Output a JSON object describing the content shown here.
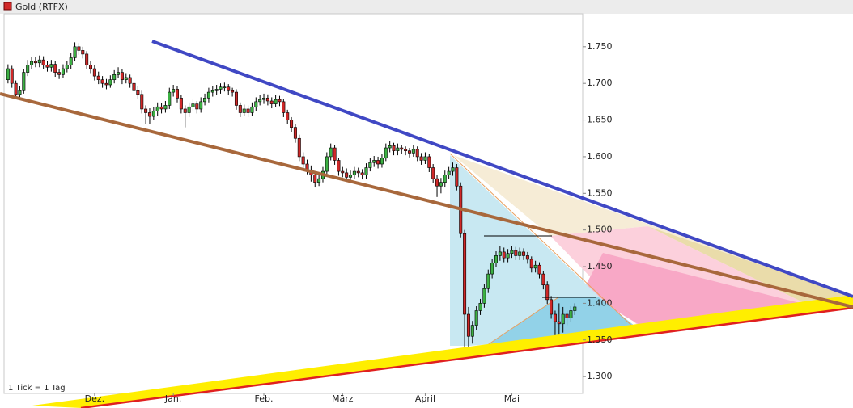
{
  "chart_data": {
    "type": "candlestick",
    "note_text": "1 Tick = 1 Tag",
    "up_color": "#3cb043",
    "down_color": "#d02828",
    "series": [
      {
        "name": "Gold (RTFX)",
        "color": "#d02828",
        "open": [
          1705,
          1720,
          1700,
          1685,
          1690,
          1715,
          1725,
          1730,
          1728,
          1732,
          1725,
          1722,
          1726,
          1715,
          1712,
          1720,
          1725,
          1735,
          1750,
          1745,
          1740,
          1725,
          1720,
          1710,
          1705,
          1700,
          1698,
          1705,
          1712,
          1715,
          1705,
          1708,
          1700,
          1690,
          1685,
          1665,
          1660,
          1655,
          1662,
          1668,
          1665,
          1670,
          1688,
          1692,
          1680,
          1665,
          1660,
          1668,
          1672,
          1665,
          1675,
          1680,
          1688,
          1690,
          1692,
          1695,
          1695,
          1690,
          1688,
          1670,
          1660,
          1665,
          1660,
          1668,
          1675,
          1678,
          1680,
          1676,
          1672,
          1678,
          1675,
          1660,
          1650,
          1640,
          1625,
          1600,
          1590,
          1582,
          1575,
          1565,
          1570,
          1580,
          1600,
          1612,
          1595,
          1580,
          1578,
          1572,
          1575,
          1580,
          1578,
          1575,
          1585,
          1592,
          1595,
          1590,
          1598,
          1612,
          1615,
          1608,
          1612,
          1610,
          1608,
          1605,
          1610,
          1600,
          1595,
          1600,
          1585,
          1570,
          1560,
          1565,
          1575,
          1580,
          1585,
          1560,
          1495,
          1385,
          1355,
          1370,
          1390,
          1400,
          1420,
          1440,
          1455,
          1465,
          1470,
          1462,
          1468,
          1472,
          1465,
          1470,
          1465,
          1460,
          1448,
          1452,
          1440,
          1425,
          1405,
          1385,
          1375,
          1372,
          1385,
          1380,
          1390
        ],
        "high": [
          1726,
          1724,
          1704,
          1696,
          1720,
          1732,
          1736,
          1736,
          1738,
          1737,
          1730,
          1732,
          1730,
          1720,
          1726,
          1731,
          1741,
          1756,
          1755,
          1750,
          1744,
          1730,
          1725,
          1716,
          1710,
          1706,
          1711,
          1718,
          1722,
          1719,
          1714,
          1712,
          1704,
          1696,
          1690,
          1670,
          1666,
          1668,
          1674,
          1673,
          1676,
          1694,
          1698,
          1696,
          1684,
          1670,
          1674,
          1678,
          1676,
          1681,
          1686,
          1694,
          1696,
          1698,
          1700,
          1701,
          1699,
          1694,
          1692,
          1674,
          1671,
          1670,
          1674,
          1681,
          1684,
          1686,
          1685,
          1681,
          1684,
          1683,
          1679,
          1664,
          1654,
          1644,
          1630,
          1606,
          1596,
          1588,
          1580,
          1576,
          1586,
          1606,
          1618,
          1616,
          1598,
          1586,
          1584,
          1581,
          1586,
          1585,
          1583,
          1591,
          1598,
          1601,
          1600,
          1604,
          1618,
          1621,
          1619,
          1618,
          1616,
          1614,
          1612,
          1616,
          1614,
          1605,
          1606,
          1604,
          1590,
          1575,
          1571,
          1581,
          1586,
          1592,
          1590,
          1565,
          1500,
          1395,
          1376,
          1396,
          1406,
          1426,
          1446,
          1461,
          1471,
          1478,
          1476,
          1474,
          1478,
          1477,
          1476,
          1475,
          1470,
          1464,
          1458,
          1456,
          1444,
          1430,
          1410,
          1390,
          1400,
          1395,
          1390,
          1396,
          1400
        ],
        "low": [
          1700,
          1694,
          1679,
          1680,
          1686,
          1710,
          1720,
          1722,
          1722,
          1719,
          1716,
          1716,
          1709,
          1706,
          1708,
          1715,
          1720,
          1730,
          1739,
          1734,
          1719,
          1714,
          1704,
          1699,
          1694,
          1692,
          1694,
          1700,
          1707,
          1699,
          1700,
          1694,
          1684,
          1679,
          1659,
          1645,
          1645,
          1650,
          1656,
          1659,
          1660,
          1665,
          1682,
          1674,
          1659,
          1640,
          1654,
          1662,
          1659,
          1660,
          1670,
          1674,
          1682,
          1684,
          1686,
          1689,
          1684,
          1682,
          1664,
          1654,
          1655,
          1654,
          1656,
          1662,
          1670,
          1672,
          1670,
          1666,
          1668,
          1669,
          1654,
          1644,
          1634,
          1619,
          1594,
          1584,
          1576,
          1566,
          1558,
          1560,
          1565,
          1576,
          1595,
          1589,
          1574,
          1572,
          1566,
          1566,
          1570,
          1572,
          1569,
          1570,
          1580,
          1586,
          1584,
          1585,
          1594,
          1606,
          1602,
          1602,
          1604,
          1602,
          1599,
          1600,
          1594,
          1589,
          1590,
          1579,
          1564,
          1545,
          1550,
          1558,
          1570,
          1574,
          1554,
          1490,
          1325,
          1330,
          1345,
          1364,
          1384,
          1394,
          1414,
          1434,
          1449,
          1458,
          1456,
          1456,
          1462,
          1459,
          1459,
          1459,
          1454,
          1442,
          1442,
          1434,
          1419,
          1399,
          1379,
          1345,
          1340,
          1360,
          1370,
          1374,
          1384
        ],
        "close": [
          1720,
          1700,
          1685,
          1690,
          1715,
          1725,
          1730,
          1728,
          1732,
          1725,
          1722,
          1726,
          1715,
          1712,
          1720,
          1725,
          1735,
          1750,
          1745,
          1740,
          1725,
          1720,
          1710,
          1705,
          1700,
          1698,
          1705,
          1712,
          1715,
          1705,
          1708,
          1700,
          1690,
          1685,
          1665,
          1660,
          1655,
          1662,
          1668,
          1665,
          1670,
          1688,
          1692,
          1680,
          1665,
          1660,
          1668,
          1672,
          1665,
          1675,
          1680,
          1688,
          1690,
          1692,
          1695,
          1695,
          1690,
          1688,
          1670,
          1660,
          1665,
          1660,
          1668,
          1675,
          1678,
          1680,
          1676,
          1672,
          1678,
          1675,
          1660,
          1650,
          1640,
          1625,
          1600,
          1590,
          1582,
          1575,
          1565,
          1570,
          1580,
          1600,
          1612,
          1595,
          1580,
          1578,
          1572,
          1575,
          1580,
          1578,
          1575,
          1585,
          1592,
          1595,
          1590,
          1598,
          1612,
          1615,
          1608,
          1612,
          1610,
          1608,
          1605,
          1610,
          1600,
          1595,
          1600,
          1585,
          1570,
          1560,
          1565,
          1575,
          1580,
          1585,
          1560,
          1495,
          1385,
          1355,
          1370,
          1390,
          1400,
          1420,
          1440,
          1455,
          1465,
          1470,
          1462,
          1468,
          1472,
          1465,
          1470,
          1465,
          1460,
          1448,
          1452,
          1440,
          1425,
          1405,
          1385,
          1375,
          1372,
          1385,
          1380,
          1390,
          1395
        ]
      }
    ],
    "xlim": [
      -1,
      146
    ],
    "xticks": [
      {
        "value": 22,
        "label": "Dez."
      },
      {
        "value": 42,
        "label": "Jan."
      },
      {
        "value": 65,
        "label": "Feb."
      },
      {
        "value": 85,
        "label": "März"
      },
      {
        "value": 106,
        "label": "April"
      },
      {
        "value": 128,
        "label": "Mai"
      }
    ],
    "ylim": [
      1277,
      1795
    ],
    "yticks": [
      {
        "value": 1300,
        "label": "1.300"
      },
      {
        "value": 1350,
        "label": "1.350"
      },
      {
        "value": 1400,
        "label": "1.400"
      },
      {
        "value": 1450,
        "label": "1.450"
      },
      {
        "value": 1500,
        "label": "1.500"
      },
      {
        "value": 1550,
        "label": "1.550"
      },
      {
        "value": 1600,
        "label": "1.600"
      },
      {
        "value": 1650,
        "label": "1.650"
      },
      {
        "value": 1700,
        "label": "1.700"
      },
      {
        "value": 1750,
        "label": "1.750"
      }
    ]
  }
}
